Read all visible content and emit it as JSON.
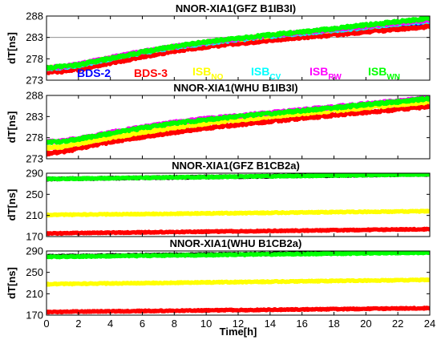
{
  "figure": {
    "xlabel": "Time[h]",
    "x_range": [
      0,
      24
    ],
    "x_ticks": [
      "0",
      "2",
      "4",
      "6",
      "8",
      "10",
      "12",
      "14",
      "16",
      "18",
      "20",
      "22",
      "24"
    ]
  },
  "colors": {
    "bds2": "#0000ff",
    "bds3": "#ff0000",
    "yellow": "#ffff00",
    "green": "#00ff00",
    "magenta": "#ff00ff",
    "cyan": "#00ffff",
    "black": "#000000"
  },
  "legend": {
    "bds2": "BDS-2",
    "bds3": "BDS-3",
    "isb": "ISB",
    "sub_no": "NO",
    "sub_cv": "CV",
    "sub_rw": "RW",
    "sub_wn": "WN"
  },
  "chart_data": [
    {
      "type": "scatter",
      "title": "NNOR-XIA1(GFZ B1IB3I)",
      "ylabel": "dT[ns]",
      "ylim": [
        273,
        288
      ],
      "yticks": [
        "273",
        "278",
        "283",
        "288"
      ],
      "grid": "horizontal at 283",
      "series": [
        {
          "name": "BDS-2",
          "color": "#0000ff",
          "x": [
            0,
            1,
            2,
            4,
            6,
            8,
            10,
            12,
            14,
            16,
            18,
            20,
            22,
            24
          ],
          "y": [
            275.4,
            275.6,
            276.0,
            277.5,
            279.0,
            280.5,
            281.5,
            282.3,
            283.0,
            283.7,
            284.4,
            285.1,
            285.8,
            286.5
          ]
        },
        {
          "name": "BDS-3",
          "color": "#ff0000",
          "x": [
            0,
            1,
            2,
            4,
            6,
            8,
            10,
            12,
            14,
            16,
            18,
            20,
            22,
            24
          ],
          "y": [
            274.9,
            275.1,
            275.5,
            277.0,
            278.5,
            279.8,
            280.8,
            281.6,
            282.3,
            283.0,
            283.6,
            284.3,
            284.9,
            285.6
          ]
        },
        {
          "name": "ISB NO",
          "color": "#ffff00",
          "x": [
            0,
            1,
            2,
            4,
            6,
            8,
            10,
            12,
            14,
            16,
            18,
            20,
            22,
            24
          ],
          "y": [
            275.8,
            276.1,
            276.6,
            278.2,
            279.6,
            280.8,
            281.8,
            282.6,
            283.4,
            284.1,
            284.8,
            285.5,
            286.3,
            287.0
          ]
        },
        {
          "name": "ISB CV",
          "color": "#00ffff",
          "x": [
            0,
            1,
            2,
            4,
            6,
            8,
            10,
            12,
            14,
            16,
            18,
            20,
            22,
            24
          ],
          "y": [
            275.7,
            276.0,
            276.5,
            278.0,
            279.5,
            280.7,
            281.7,
            282.5,
            283.3,
            284.0,
            284.7,
            285.4,
            286.2,
            286.9
          ]
        },
        {
          "name": "ISB RW",
          "color": "#ff00ff",
          "x": [
            0,
            1,
            2,
            4,
            6,
            8,
            10,
            12,
            14,
            16,
            18,
            20,
            22,
            24
          ],
          "y": [
            275.9,
            276.2,
            276.7,
            278.3,
            279.7,
            280.9,
            281.9,
            282.7,
            283.5,
            284.2,
            284.9,
            285.6,
            286.4,
            287.1
          ]
        },
        {
          "name": "ISB WN",
          "color": "#00ff00",
          "x": [
            0,
            1,
            2,
            4,
            6,
            8,
            10,
            12,
            14,
            16,
            18,
            20,
            22,
            24
          ],
          "y": [
            275.9,
            276.2,
            276.6,
            278.1,
            279.6,
            280.9,
            282.0,
            282.8,
            283.6,
            284.3,
            285.1,
            285.9,
            286.7,
            287.4
          ]
        }
      ]
    },
    {
      "type": "scatter",
      "title": "NNOR-XIA1(WHU B1IB3I)",
      "ylabel": "dT[ns]",
      "ylim": [
        273,
        288
      ],
      "yticks": [
        "273",
        "278",
        "283",
        "288"
      ],
      "grid": "none",
      "series": [
        {
          "name": "BDS-3",
          "color": "#ff0000",
          "x": [
            0,
            1,
            2,
            4,
            6,
            8,
            10,
            12,
            14,
            16,
            18,
            20,
            22,
            24
          ],
          "y": [
            274.3,
            274.6,
            275.5,
            277.0,
            278.2,
            279.3,
            280.3,
            281.1,
            281.9,
            282.6,
            283.3,
            284.0,
            284.7,
            285.4
          ]
        },
        {
          "name": "ISB NO",
          "color": "#ffff00",
          "x": [
            0,
            1,
            2,
            4,
            6,
            8,
            10,
            12,
            14,
            16,
            18,
            20,
            22,
            24
          ],
          "y": [
            275.6,
            275.9,
            276.6,
            278.0,
            279.3,
            280.4,
            281.4,
            282.2,
            283.0,
            283.7,
            284.4,
            285.1,
            285.8,
            286.5
          ]
        },
        {
          "name": "ISB RW",
          "color": "#ff00ff",
          "x": [
            0,
            1,
            2,
            4,
            6,
            8,
            10,
            12,
            14,
            16,
            18,
            20,
            22,
            24
          ],
          "y": [
            277.0,
            277.2,
            277.8,
            279.2,
            280.5,
            281.6,
            282.5,
            283.2,
            283.9,
            284.6,
            285.3,
            286.0,
            286.7,
            287.5
          ]
        },
        {
          "name": "ISB WN",
          "color": "#00ff00",
          "x": [
            0,
            1,
            2,
            4,
            6,
            8,
            10,
            12,
            14,
            16,
            18,
            20,
            22,
            24
          ],
          "y": [
            276.9,
            277.1,
            277.7,
            279.0,
            280.3,
            281.4,
            282.3,
            283.0,
            283.7,
            284.4,
            285.1,
            285.8,
            286.5,
            287.3
          ]
        }
      ]
    },
    {
      "type": "scatter",
      "title": "NNOR-XIA1(GFZ B1CB2a)",
      "ylabel": "dT[ns]",
      "ylim": [
        170,
        290
      ],
      "yticks": [
        "170",
        "210",
        "250",
        "290"
      ],
      "grid": "none",
      "series": [
        {
          "name": "ISB NO",
          "color": "#ffff00",
          "x": [
            0,
            24
          ],
          "y": [
            211,
            218
          ]
        },
        {
          "name": "BDS-3",
          "color": "#ff0000",
          "x": [
            0,
            24
          ],
          "y": [
            176,
            184
          ]
        },
        {
          "name": "BDS-2",
          "color": "#000000",
          "x": [
            0,
            24
          ],
          "y": [
            279,
            288
          ]
        },
        {
          "name": "ISB WN",
          "color": "#00ff00",
          "x": [
            0,
            24
          ],
          "y": [
            279,
            288
          ]
        }
      ]
    },
    {
      "type": "scatter",
      "title": "NNOR-XIA1(WHU B1CB2a)",
      "ylabel": "dT[ns]",
      "ylim": [
        170,
        290
      ],
      "yticks": [
        "170",
        "210",
        "250",
        "290"
      ],
      "grid": "none",
      "series": [
        {
          "name": "ISB NO",
          "color": "#ffff00",
          "x": [
            0,
            24
          ],
          "y": [
            228,
            236
          ]
        },
        {
          "name": "BDS-3",
          "color": "#ff0000",
          "x": [
            0,
            24
          ],
          "y": [
            176,
            183
          ]
        },
        {
          "name": "BDS-2",
          "color": "#000000",
          "x": [
            0,
            24
          ],
          "y": [
            280,
            288
          ]
        },
        {
          "name": "ISB WN",
          "color": "#00ff00",
          "x": [
            0,
            24
          ],
          "y": [
            279,
            287
          ]
        }
      ]
    }
  ]
}
